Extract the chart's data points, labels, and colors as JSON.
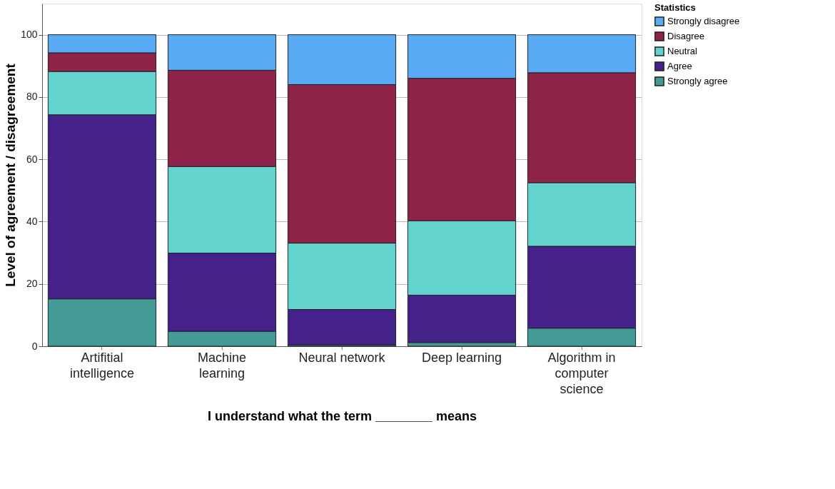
{
  "chart_data": {
    "type": "bar",
    "stacked": true,
    "xlabel": "I understand what the term ________ means",
    "ylabel": "Level of agreement / disagreement",
    "legend_title": "Statistics",
    "legend": "top right",
    "grid": "y",
    "categories": [
      "Artifitial intelligence",
      "Machine learning",
      "Neural network",
      "Deep learning",
      "Algorithm in computer science"
    ],
    "ylim": [
      0,
      110
    ],
    "yticks": [
      0,
      20,
      40,
      60,
      80,
      100
    ],
    "series": [
      {
        "name": "Strongly agree",
        "color": "#449b96",
        "values": [
          15.2,
          4.8,
          0.4,
          1.2,
          5.8
        ]
      },
      {
        "name": "Agree",
        "color": "#45218a",
        "values": [
          59.1,
          25.1,
          11.4,
          15.2,
          26.3
        ]
      },
      {
        "name": "Neutral",
        "color": "#63d3cd",
        "values": [
          13.9,
          27.8,
          21.3,
          23.9,
          20.4
        ]
      },
      {
        "name": "Disagree",
        "color": "#8e2349",
        "values": [
          6.0,
          30.9,
          50.9,
          45.7,
          35.3
        ]
      },
      {
        "name": "Strongly disagree",
        "color": "#5aabf5",
        "values": [
          5.8,
          11.4,
          16.0,
          14.0,
          12.2
        ]
      }
    ]
  }
}
